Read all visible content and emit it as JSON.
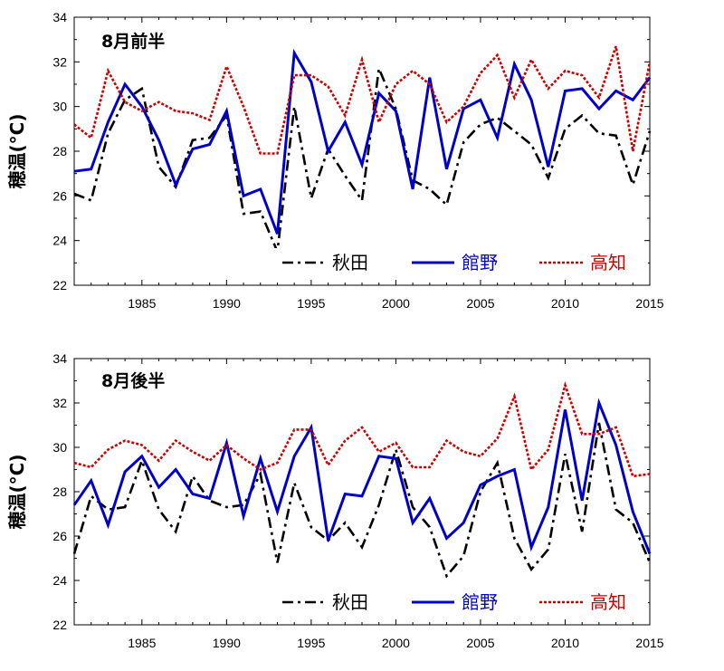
{
  "chart_data": [
    {
      "type": "line",
      "title": "8月前半",
      "ylabel": "穂温(°C)",
      "xlabel": "",
      "xlim": [
        1981,
        2015
      ],
      "ylim": [
        22,
        34
      ],
      "xticks": [
        1985,
        1990,
        1995,
        2000,
        2005,
        2010,
        2015
      ],
      "yticks": [
        22,
        24,
        26,
        28,
        30,
        32,
        34
      ],
      "grid": false,
      "legend": "bottom",
      "x": [
        1981,
        1982,
        1983,
        1984,
        1985,
        1986,
        1987,
        1988,
        1989,
        1990,
        1991,
        1992,
        1993,
        1994,
        1995,
        1996,
        1997,
        1998,
        1999,
        2000,
        2001,
        2002,
        2003,
        2004,
        2005,
        2006,
        2007,
        2008,
        2009,
        2010,
        2011,
        2012,
        2013,
        2014,
        2015
      ],
      "series": [
        {
          "name": "秋田",
          "color": "#000000",
          "dash": "dashdot",
          "values": [
            26.1,
            25.8,
            28.8,
            30.3,
            30.8,
            27.3,
            26.4,
            28.5,
            28.6,
            29.6,
            25.2,
            25.3,
            23.5,
            30.0,
            25.9,
            28.1,
            26.9,
            25.8,
            31.7,
            29.9,
            26.7,
            26.3,
            25.6,
            28.4,
            29.2,
            29.5,
            28.9,
            28.3,
            26.8,
            29.0,
            29.6,
            28.8,
            28.7,
            26.5,
            28.9
          ]
        },
        {
          "name": "館野",
          "color": "#0000cc",
          "dash": "solid",
          "values": [
            27.1,
            27.2,
            29.3,
            31.0,
            30.0,
            28.5,
            26.5,
            28.1,
            28.3,
            29.8,
            26.0,
            26.3,
            24.3,
            32.4,
            31.1,
            28.0,
            29.3,
            27.4,
            30.6,
            29.8,
            26.3,
            31.3,
            27.2,
            29.9,
            30.3,
            28.6,
            31.9,
            30.3,
            27.3,
            30.7,
            30.8,
            29.9,
            30.7,
            30.3,
            31.3
          ]
        },
        {
          "name": "高知",
          "color": "#cc0000",
          "dash": "dotted",
          "values": [
            29.2,
            28.6,
            31.6,
            30.2,
            29.8,
            30.2,
            29.8,
            29.7,
            29.4,
            31.8,
            30.0,
            27.9,
            27.9,
            31.4,
            31.4,
            30.9,
            29.6,
            32.1,
            29.3,
            31.0,
            31.6,
            31.0,
            29.3,
            30.0,
            31.5,
            32.3,
            30.4,
            32.1,
            30.8,
            31.6,
            31.4,
            30.4,
            32.7,
            28.0,
            32.0
          ]
        }
      ]
    },
    {
      "type": "line",
      "title": "8月後半",
      "ylabel": "穂温(°C)",
      "xlabel": "",
      "xlim": [
        1981,
        2015
      ],
      "ylim": [
        22,
        34
      ],
      "xticks": [
        1985,
        1990,
        1995,
        2000,
        2005,
        2010,
        2015
      ],
      "yticks": [
        22,
        24,
        26,
        28,
        30,
        32,
        34
      ],
      "grid": false,
      "legend": "bottom",
      "x": [
        1981,
        1982,
        1983,
        1984,
        1985,
        1986,
        1987,
        1988,
        1989,
        1990,
        1991,
        1992,
        1993,
        1994,
        1995,
        1996,
        1997,
        1998,
        1999,
        2000,
        2001,
        2002,
        2003,
        2004,
        2005,
        2006,
        2007,
        2008,
        2009,
        2010,
        2011,
        2012,
        2013,
        2014,
        2015
      ],
      "series": [
        {
          "name": "秋田",
          "color": "#000000",
          "dash": "dashdot",
          "values": [
            25.2,
            27.8,
            27.2,
            27.3,
            29.4,
            27.2,
            26.2,
            28.7,
            27.6,
            27.3,
            27.4,
            28.8,
            24.8,
            28.4,
            26.4,
            25.8,
            26.6,
            25.5,
            27.4,
            29.9,
            27.3,
            26.4,
            24.2,
            25.1,
            28.0,
            29.3,
            25.9,
            24.5,
            25.4,
            29.7,
            26.2,
            31.1,
            27.2,
            26.6,
            24.8
          ]
        },
        {
          "name": "館野",
          "color": "#0000cc",
          "dash": "solid",
          "values": [
            27.4,
            28.5,
            26.5,
            28.9,
            29.6,
            28.2,
            29.0,
            27.9,
            27.7,
            30.2,
            26.9,
            29.5,
            27.1,
            29.6,
            30.9,
            25.8,
            27.9,
            27.8,
            29.6,
            29.5,
            26.6,
            27.7,
            25.9,
            26.6,
            28.3,
            28.7,
            29.0,
            25.5,
            27.3,
            31.7,
            27.6,
            32.0,
            30.1,
            27.1,
            25.2
          ]
        },
        {
          "name": "高知",
          "color": "#cc0000",
          "dash": "dotted",
          "values": [
            29.3,
            29.1,
            29.9,
            30.3,
            30.1,
            29.4,
            30.3,
            29.8,
            29.4,
            30.1,
            29.5,
            29.0,
            29.3,
            30.8,
            30.8,
            29.2,
            30.3,
            30.9,
            29.8,
            30.2,
            29.1,
            29.1,
            30.3,
            29.8,
            29.6,
            30.4,
            32.3,
            29.0,
            29.9,
            32.8,
            30.6,
            30.6,
            30.9,
            28.7,
            28.8
          ]
        }
      ]
    }
  ]
}
